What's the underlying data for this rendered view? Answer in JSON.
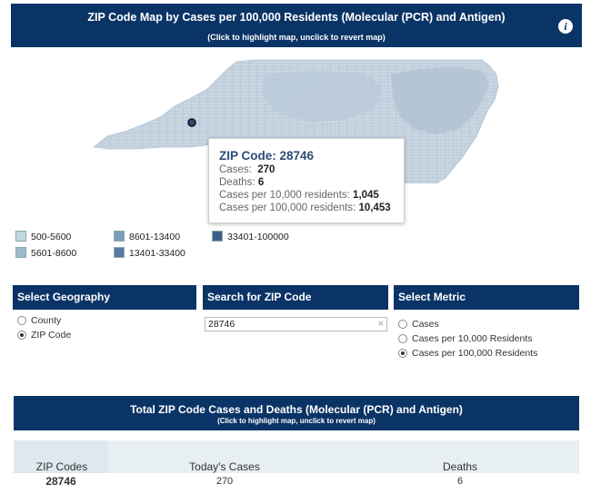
{
  "header": {
    "title": "ZIP Code Map by Cases per 100,000 Residents (Molecular (PCR) and Antigen)",
    "subtitle": "(Click to highlight map, unclick to revert map)",
    "info_icon": "i"
  },
  "tooltip": {
    "title": "ZIP Code: 28746",
    "cases_label": "Cases:",
    "cases_value": "270",
    "deaths_label": "Deaths:",
    "deaths_value": "6",
    "per10k_label": "Cases per 10,000 residents:",
    "per10k_value": "1,045",
    "per100k_label": "Cases per 100,000 residents:",
    "per100k_value": "10,453"
  },
  "legend": [
    {
      "label": "500-5600",
      "color": "#c4d7e4"
    },
    {
      "label": "8601-13400",
      "color": "#7d9bb8"
    },
    {
      "label": "33401-100000",
      "color": "#3d5f87"
    },
    {
      "label": "5601-8600",
      "color": "#9fb9cf"
    },
    {
      "label": "13401-33400",
      "color": "#5a7aa0"
    }
  ],
  "geography": {
    "heading": "Select Geography",
    "options": [
      "County",
      "ZIP Code"
    ],
    "selected": "ZIP Code"
  },
  "search": {
    "heading": "Search for ZIP Code",
    "value": "28746",
    "clear_icon": "×"
  },
  "metric": {
    "heading": "Select Metric",
    "options": [
      "Cases",
      "Cases per 10,000 Residents",
      "Cases per 100,000 Residents"
    ],
    "selected": "Cases per 100,000 Residents"
  },
  "totals": {
    "title": "Total ZIP Code Cases and Deaths (Molecular (PCR) and Antigen)",
    "subtitle": "(Click to highlight map, unclick to revert map)",
    "columns": [
      "ZIP Codes",
      "Today's Cases",
      "Deaths"
    ],
    "row": [
      "28746",
      "270",
      "6"
    ]
  },
  "colors": {
    "navy": "#0b3466",
    "map_fill": "#c9d6e2",
    "map_dark": "#3d5f87"
  }
}
